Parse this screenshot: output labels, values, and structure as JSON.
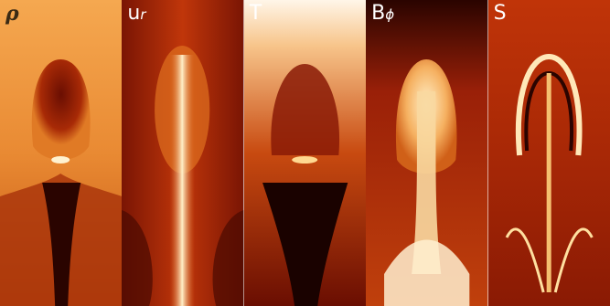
{
  "panels": [
    {
      "id": "rho",
      "label": "ρ",
      "sub": "",
      "text_color": "#3a2a14",
      "bg": "#f2a04a"
    },
    {
      "id": "ur",
      "label": "u",
      "sub": "r",
      "text_color": "#ffffff",
      "bg": "#8a1a06"
    },
    {
      "id": "T",
      "label": "T",
      "sub": "",
      "text_color": "#ffffff",
      "bg": "#b83a0e"
    },
    {
      "id": "Bphi",
      "label": "B",
      "sub": "ϕ",
      "text_color": "#ffffff",
      "bg": "#9a2008"
    },
    {
      "id": "S",
      "label": "S",
      "sub": "",
      "text_color": "#ffffff",
      "bg": "#b02a08"
    }
  ],
  "colormap": {
    "dark": "#1a0200",
    "mid": "#c0360a",
    "bright": "#f5a040",
    "white": "#fff6e8"
  }
}
